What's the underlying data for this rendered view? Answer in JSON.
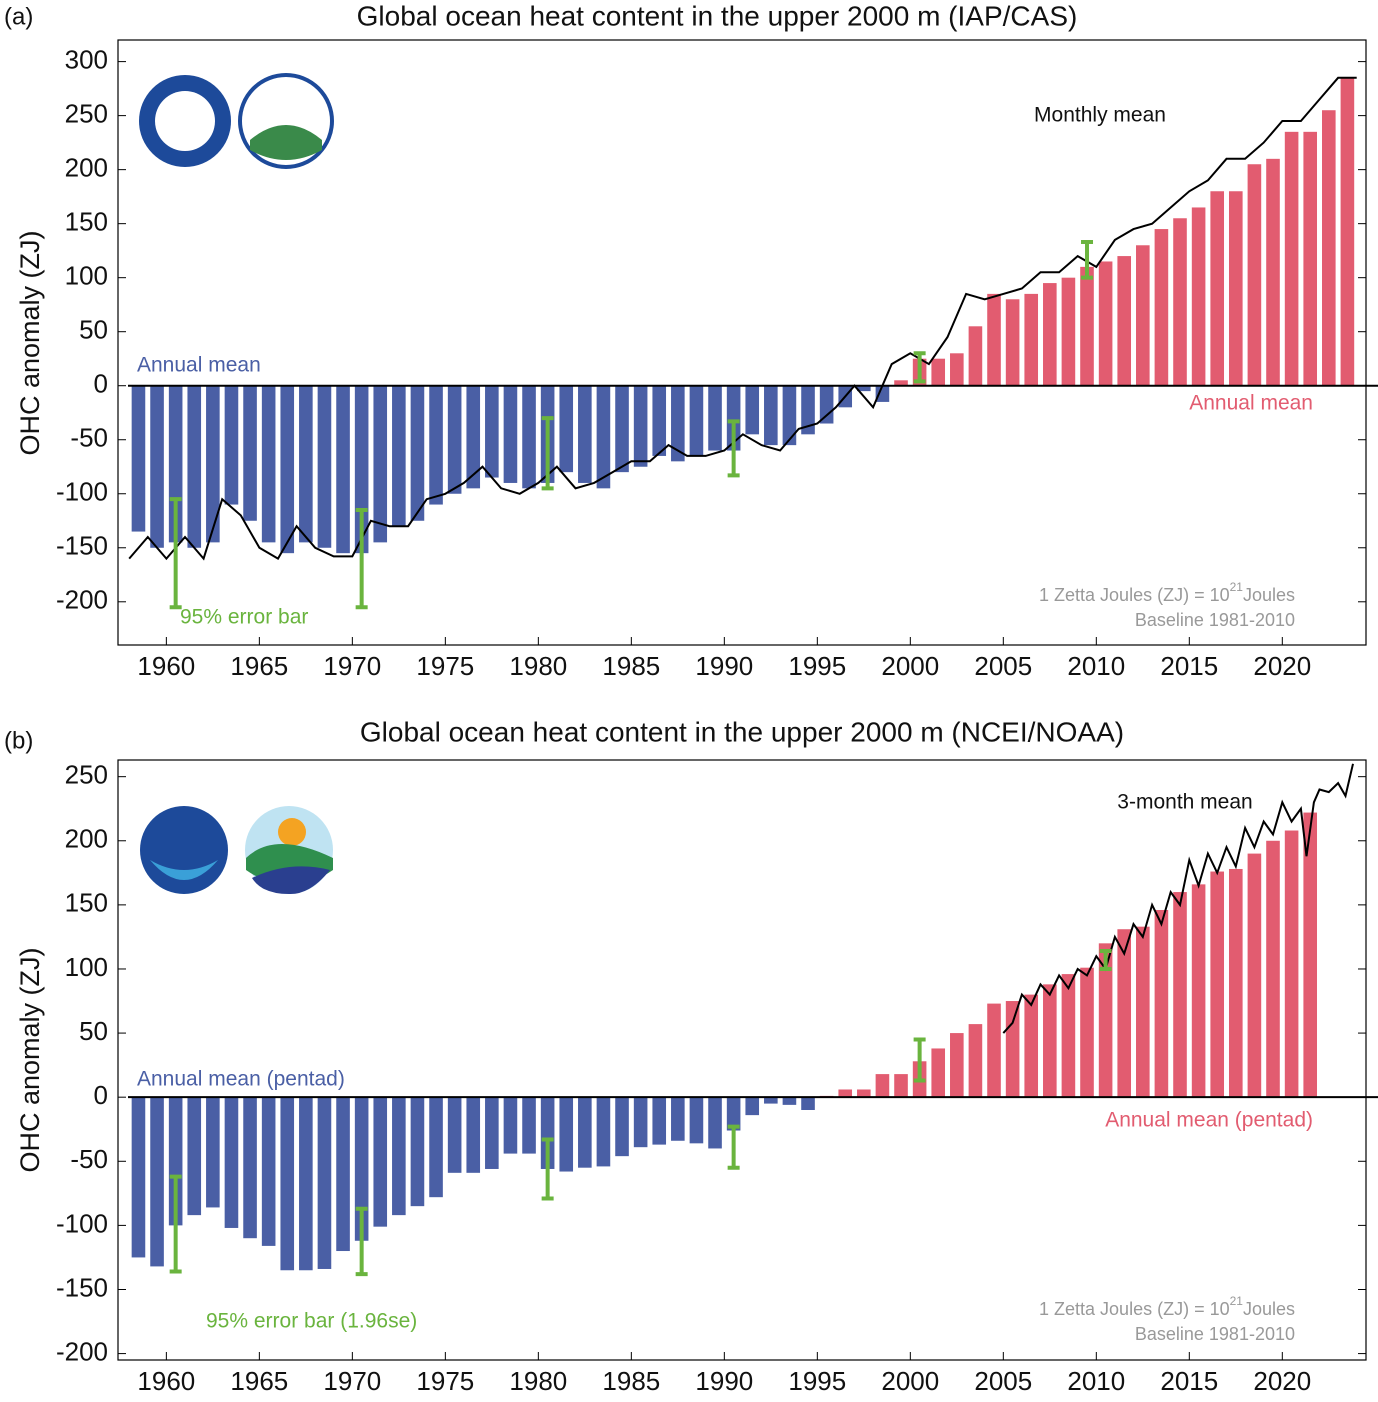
{
  "chart_data": [
    {
      "type": "bar",
      "panel_label": "(a)",
      "title": "Global ocean heat content in the upper 2000 m (IAP/CAS)",
      "y_label": "OHC anomaly (ZJ)",
      "x": [
        1958,
        1959,
        1960,
        1961,
        1962,
        1963,
        1964,
        1965,
        1966,
        1967,
        1968,
        1969,
        1970,
        1971,
        1972,
        1973,
        1974,
        1975,
        1976,
        1977,
        1978,
        1979,
        1980,
        1981,
        1982,
        1983,
        1984,
        1985,
        1986,
        1987,
        1988,
        1989,
        1990,
        1991,
        1992,
        1993,
        1994,
        1995,
        1996,
        1997,
        1998,
        1999,
        2000,
        2001,
        2002,
        2003,
        2004,
        2005,
        2006,
        2007,
        2008,
        2009,
        2010,
        2011,
        2012,
        2013,
        2014,
        2015,
        2016,
        2017,
        2018,
        2019,
        2020,
        2021,
        2022,
        2023
      ],
      "values": [
        -135,
        -150,
        -145,
        -150,
        -145,
        -110,
        -125,
        -145,
        -155,
        -145,
        -150,
        -155,
        -155,
        -145,
        -130,
        -125,
        -110,
        -100,
        -95,
        -85,
        -90,
        -95,
        -90,
        -80,
        -90,
        -95,
        -80,
        -75,
        -65,
        -70,
        -65,
        -60,
        -60,
        -45,
        -55,
        -55,
        -45,
        -35,
        -20,
        -5,
        -15,
        5,
        25,
        25,
        30,
        55,
        85,
        80,
        85,
        95,
        100,
        110,
        115,
        120,
        130,
        145,
        155,
        165,
        180,
        180,
        205,
        210,
        235,
        235,
        255,
        285
      ],
      "negative_color": "#4a5fa5",
      "positive_color": "#e25c70",
      "annual_labels": [
        "Annual mean",
        "Annual mean"
      ],
      "line": {
        "name": "Monthly mean",
        "color": "#000000",
        "x": [
          1958,
          1959,
          1960,
          1961,
          1962,
          1963,
          1964,
          1965,
          1966,
          1967,
          1968,
          1969,
          1970,
          1971,
          1972,
          1973,
          1974,
          1975,
          1976,
          1977,
          1978,
          1979,
          1980,
          1981,
          1982,
          1983,
          1984,
          1985,
          1986,
          1987,
          1988,
          1989,
          1990,
          1991,
          1992,
          1993,
          1994,
          1995,
          1996,
          1997,
          1998,
          1999,
          2000,
          2001,
          2002,
          2003,
          2004,
          2005,
          2006,
          2007,
          2008,
          2009,
          2010,
          2011,
          2012,
          2013,
          2014,
          2015,
          2016,
          2017,
          2018,
          2019,
          2020,
          2021,
          2022,
          2023,
          2024
        ],
        "values": [
          -160,
          -140,
          -160,
          -140,
          -160,
          -105,
          -120,
          -150,
          -160,
          -130,
          -150,
          -158,
          -158,
          -125,
          -130,
          -130,
          -105,
          -100,
          -90,
          -75,
          -95,
          -100,
          -90,
          -75,
          -95,
          -90,
          -80,
          -70,
          -70,
          -55,
          -65,
          -65,
          -60,
          -45,
          -55,
          -60,
          -40,
          -35,
          -20,
          0,
          -20,
          20,
          30,
          20,
          45,
          85,
          80,
          85,
          90,
          105,
          105,
          120,
          110,
          135,
          145,
          150,
          165,
          180,
          190,
          210,
          210,
          225,
          245,
          245,
          265,
          285,
          285
        ]
      },
      "error_bars": {
        "name": "95% error bar",
        "color": "#6ab43e",
        "x": [
          1960.5,
          1970.5,
          1980.5,
          1990.5,
          2000.5,
          2009.5
        ],
        "values": [
          -155,
          -160,
          -62.5,
          -58,
          17,
          116.5
        ],
        "errors": [
          50,
          45,
          32.5,
          25,
          13,
          16.5
        ]
      },
      "unit_note": {
        "text": "1 Zetta Joules (ZJ) = 10",
        "superscript": "21",
        "suffix": "Joules"
      },
      "baseline_note": "Baseline 1981-2010",
      "xlim": [
        1957.4,
        2024.5
      ],
      "xticks": [
        1960,
        1965,
        1970,
        1975,
        1980,
        1985,
        1990,
        1995,
        2000,
        2005,
        2010,
        2015,
        2020
      ],
      "ylim": [
        -240,
        320
      ],
      "yticks": [
        -200,
        -150,
        -100,
        -50,
        0,
        50,
        100,
        150,
        200,
        250,
        300
      ]
    },
    {
      "type": "bar",
      "panel_label": "(b)",
      "title": "Global ocean heat content in the upper 2000 m (NCEI/NOAA)",
      "y_label": "OHC anomaly (ZJ)",
      "x": [
        1958,
        1959,
        1960,
        1961,
        1962,
        1963,
        1964,
        1965,
        1966,
        1967,
        1968,
        1969,
        1970,
        1971,
        1972,
        1973,
        1974,
        1975,
        1976,
        1977,
        1978,
        1979,
        1980,
        1981,
        1982,
        1983,
        1984,
        1985,
        1986,
        1987,
        1988,
        1989,
        1990,
        1991,
        1992,
        1993,
        1994,
        1995,
        1996,
        1997,
        1998,
        1999,
        2000,
        2001,
        2002,
        2003,
        2004,
        2005,
        2006,
        2007,
        2008,
        2009,
        2010,
        2011,
        2012,
        2013,
        2014,
        2015,
        2016,
        2017,
        2018,
        2019,
        2020,
        2021
      ],
      "values": [
        -125,
        -132,
        -100,
        -92,
        -86,
        -102,
        -110,
        -116,
        -135,
        -135,
        -134,
        -120,
        -112,
        -101,
        -92,
        -85,
        -78,
        -59,
        -59,
        -56,
        -44,
        -44,
        -56,
        -58,
        -55,
        -54,
        -46,
        -39,
        -37,
        -34,
        -36,
        -40,
        -26,
        -14,
        -5,
        -6,
        -10,
        1,
        6,
        6,
        18,
        18,
        28,
        38,
        50,
        57,
        73,
        75,
        80,
        88,
        96,
        101,
        120,
        131,
        133,
        146,
        160,
        166,
        176,
        178,
        190,
        200,
        208,
        222
      ],
      "negative_color": "#4a5fa5",
      "positive_color": "#e25c70",
      "annual_labels": [
        "Annual mean (pentad)",
        "Annual mean (pentad)"
      ],
      "line": {
        "name": "3-month mean",
        "color": "#000000",
        "x": [
          2005,
          2005.5,
          2006,
          2006.5,
          2007,
          2007.5,
          2008,
          2008.5,
          2009,
          2009.5,
          2010,
          2010.5,
          2011,
          2011.5,
          2012,
          2012.5,
          2013,
          2013.5,
          2014,
          2014.5,
          2015,
          2015.5,
          2016,
          2016.5,
          2017,
          2017.5,
          2018,
          2018.5,
          2019,
          2019.5,
          2020,
          2020.5,
          2021,
          2021.3,
          2021.7,
          2022,
          2022.5,
          2023,
          2023.4,
          2023.8
        ],
        "values": [
          50,
          58,
          80,
          72,
          88,
          80,
          95,
          85,
          100,
          95,
          110,
          100,
          125,
          112,
          135,
          125,
          150,
          135,
          160,
          150,
          185,
          165,
          190,
          175,
          195,
          180,
          210,
          195,
          215,
          205,
          230,
          215,
          225,
          188,
          230,
          240,
          238,
          245,
          235,
          260
        ]
      },
      "error_bars": {
        "name": "95% error bar (1.96se)",
        "color": "#6ab43e",
        "x": [
          1960.5,
          1970.5,
          1980.5,
          1990.5,
          2000.5,
          2010.5
        ],
        "values": [
          -99,
          -112.5,
          -56,
          -39,
          29,
          107
        ],
        "errors": [
          37,
          25.5,
          23,
          16,
          16,
          7
        ]
      },
      "unit_note": {
        "text": "1 Zetta Joules (ZJ) = 10",
        "superscript": "21",
        "suffix": "Joules"
      },
      "baseline_note": "Baseline 1981-2010",
      "xlim": [
        1957.4,
        2024.5
      ],
      "xticks": [
        1960,
        1965,
        1970,
        1975,
        1980,
        1985,
        1990,
        1995,
        2000,
        2005,
        2010,
        2015,
        2020
      ],
      "ylim": [
        -205,
        263
      ],
      "yticks": [
        -200,
        -150,
        -100,
        -50,
        0,
        50,
        100,
        150,
        200,
        250
      ]
    }
  ]
}
